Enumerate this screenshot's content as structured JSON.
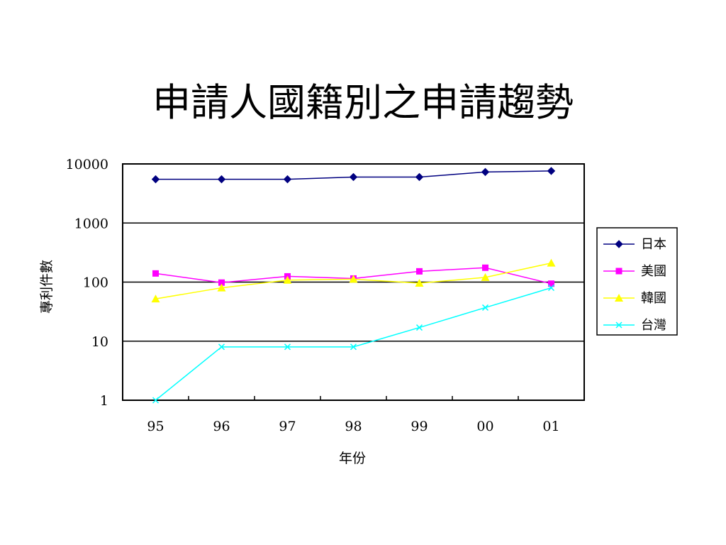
{
  "chart_data": {
    "type": "line",
    "title": "申請人國籍別之申請趨勢",
    "xlabel": "年份",
    "ylabel": "專利件數",
    "yscale": "log",
    "ylim": [
      1,
      10000
    ],
    "yticks": [
      "1",
      "10",
      "100",
      "1000",
      "10000"
    ],
    "categories": [
      "95",
      "96",
      "97",
      "98",
      "99",
      "00",
      "01"
    ],
    "grid": true,
    "legend_position": "right",
    "series": [
      {
        "name": "日本",
        "color": "#000080",
        "marker": "diamond",
        "values": [
          5500,
          5500,
          5500,
          6000,
          6000,
          7300,
          7600
        ]
      },
      {
        "name": "美國",
        "color": "#ff00ff",
        "marker": "square",
        "values": [
          140,
          98,
          125,
          115,
          152,
          175,
          94
        ]
      },
      {
        "name": "韓國",
        "color": "#ffff00",
        "marker": "triangle",
        "values": [
          52,
          80,
          108,
          112,
          96,
          120,
          210
        ]
      },
      {
        "name": "台灣",
        "color": "#00ffff",
        "marker": "x",
        "values": [
          1,
          8,
          8,
          8,
          17,
          37,
          80
        ]
      }
    ]
  }
}
